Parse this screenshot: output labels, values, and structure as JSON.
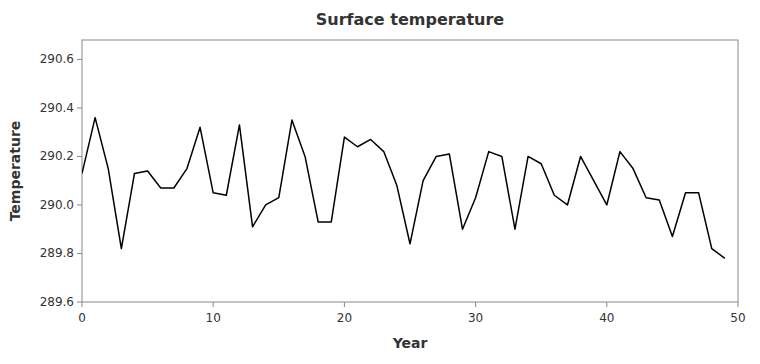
{
  "chart_data": {
    "type": "line",
    "title": "Surface temperature",
    "xlabel": "Year",
    "ylabel": "Temperature",
    "x": [
      0,
      1,
      2,
      3,
      4,
      5,
      6,
      7,
      8,
      9,
      10,
      11,
      12,
      13,
      14,
      15,
      16,
      17,
      18,
      19,
      20,
      21,
      22,
      23,
      24,
      25,
      26,
      27,
      28,
      29,
      30,
      31,
      32,
      33,
      34,
      35,
      36,
      37,
      38,
      39,
      40,
      41,
      42,
      43,
      44,
      45,
      46,
      47,
      48,
      49
    ],
    "values": [
      290.13,
      290.36,
      290.15,
      289.82,
      290.13,
      290.14,
      290.07,
      290.07,
      290.15,
      290.32,
      290.05,
      290.04,
      290.33,
      289.91,
      290.0,
      290.03,
      290.35,
      290.2,
      289.93,
      289.93,
      290.28,
      290.24,
      290.27,
      290.22,
      290.08,
      289.84,
      290.1,
      290.2,
      290.21,
      289.9,
      290.03,
      290.22,
      290.2,
      289.9,
      290.2,
      290.17,
      290.04,
      290.0,
      290.2,
      290.1,
      290.0,
      290.22,
      290.15,
      290.03,
      290.02,
      289.87,
      290.05,
      290.05,
      289.82,
      289.78
    ],
    "color": "#000000",
    "xlim": [
      0,
      50
    ],
    "ylim": [
      289.6,
      290.68
    ],
    "xticks": [
      0,
      10,
      20,
      30,
      40,
      50
    ],
    "yticks": [
      289.6,
      289.8,
      {
        "value": 290.0,
        "label": "290.0"
      },
      290.2,
      290.4,
      290.6
    ]
  }
}
